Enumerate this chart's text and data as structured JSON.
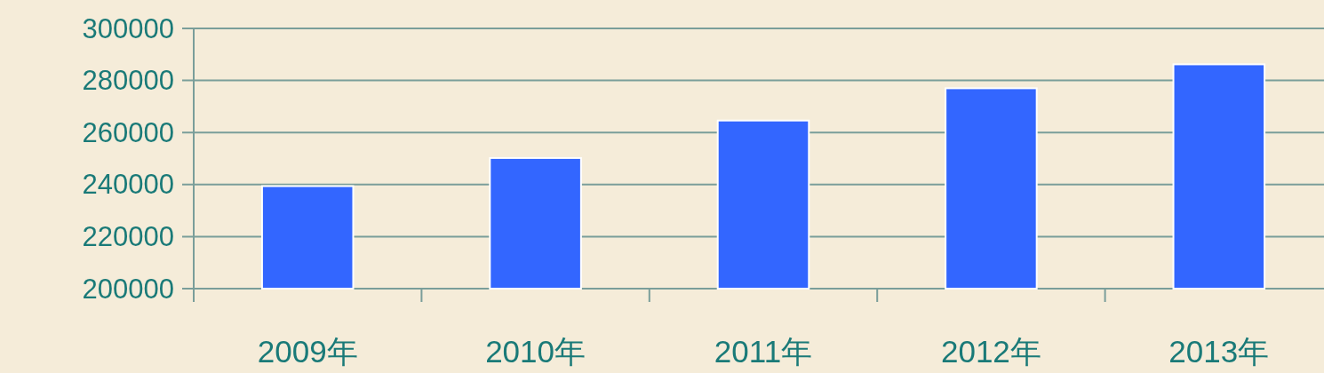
{
  "chart_data": {
    "type": "bar",
    "categories": [
      "2009年",
      "2010年",
      "2011年",
      "2012年",
      "2013年"
    ],
    "values": [
      239400,
      250200,
      264600,
      277000,
      286200
    ],
    "color": "#3366ff",
    "ylim": [
      200000,
      300000
    ],
    "yticks": [
      200000,
      220000,
      240000,
      260000,
      280000,
      300000
    ],
    "grid": "y"
  }
}
